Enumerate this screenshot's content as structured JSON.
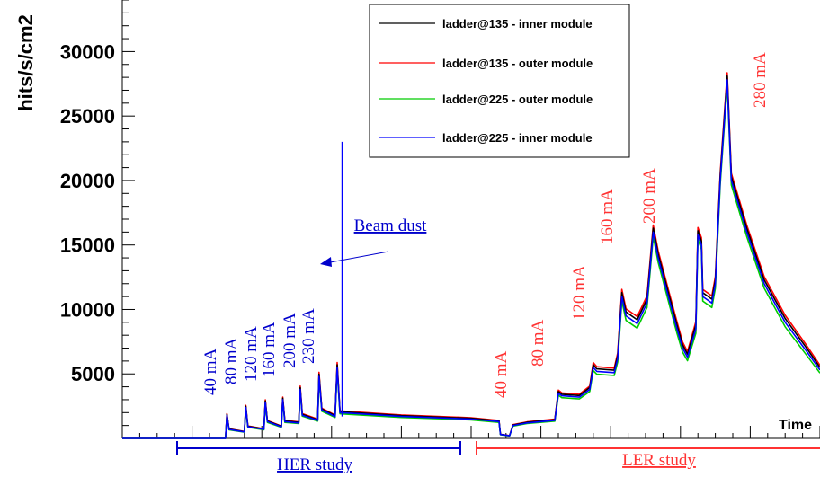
{
  "chart_data": {
    "type": "line",
    "ylabel": "hits/s/cm2",
    "xlabel": "Time",
    "ylim": [
      0,
      34000
    ],
    "y_ticks": [
      5000,
      10000,
      15000,
      20000,
      25000,
      30000
    ],
    "legend_position": "top-center",
    "colors": {
      "black": "#000000",
      "red": "#ff0000",
      "green": "#00cc00",
      "blue": "#0000ff",
      "annot_blue": "#0000cc",
      "annot_red": "#ff3333"
    },
    "series": [
      {
        "name": "ladder@135 - inner  module",
        "color": "#000000",
        "offset": 300
      },
      {
        "name": "ladder@135 - outer  module",
        "color": "#ff0000",
        "offset": 550
      },
      {
        "name": "ladder@225 - outer  module",
        "color": "#00cc00",
        "offset": -350
      },
      {
        "name": "ladder@225 - inner  module",
        "color": "#0000ff",
        "offset": 0
      }
    ],
    "base_profile": {
      "note_units": "x in relative time units 0-100, y in hits/s/cm2",
      "points": [
        [
          0,
          0
        ],
        [
          14.2,
          0
        ],
        [
          14.8,
          0
        ],
        [
          15.0,
          1800
        ],
        [
          15.3,
          700
        ],
        [
          17.5,
          500
        ],
        [
          17.7,
          2400
        ],
        [
          18.0,
          900
        ],
        [
          20.3,
          700
        ],
        [
          20.5,
          2800
        ],
        [
          20.8,
          1300
        ],
        [
          22.8,
          900
        ],
        [
          23.0,
          3000
        ],
        [
          23.3,
          1300
        ],
        [
          25.3,
          1200
        ],
        [
          25.5,
          3800
        ],
        [
          25.8,
          1800
        ],
        [
          28.0,
          1400
        ],
        [
          28.2,
          4800
        ],
        [
          28.6,
          2200
        ],
        [
          30.5,
          1700
        ],
        [
          30.8,
          5500
        ],
        [
          31.2,
          2000
        ],
        [
          40,
          1700
        ],
        [
          50,
          1500
        ],
        [
          54.0,
          1300
        ],
        [
          54.2,
          300
        ],
        [
          55.5,
          200
        ],
        [
          56.0,
          1000
        ],
        [
          58,
          1200
        ],
        [
          62,
          1400
        ],
        [
          62.5,
          3500
        ],
        [
          63,
          3300
        ],
        [
          65.5,
          3200
        ],
        [
          67.0,
          3800
        ],
        [
          67.5,
          5500
        ],
        [
          68,
          5200
        ],
        [
          70.5,
          5100
        ],
        [
          71.0,
          6200
        ],
        [
          71.6,
          11000
        ],
        [
          72.2,
          9500
        ],
        [
          73.8,
          8900
        ],
        [
          75.2,
          10500
        ],
        [
          76.1,
          16000
        ],
        [
          76.8,
          14000
        ],
        [
          78.5,
          10500
        ],
        [
          79.5,
          8500
        ],
        [
          80.3,
          7000
        ],
        [
          81.0,
          6300
        ],
        [
          82.2,
          8500
        ],
        [
          82.5,
          15800
        ],
        [
          83.0,
          15000
        ],
        [
          83.2,
          11000
        ],
        [
          84.5,
          10500
        ],
        [
          85.0,
          12000
        ],
        [
          85.7,
          20000
        ],
        [
          86.7,
          27800
        ],
        [
          87.3,
          20000
        ],
        [
          89.5,
          16000
        ],
        [
          92,
          12000
        ],
        [
          95,
          9000
        ],
        [
          98,
          6800
        ],
        [
          100,
          5300
        ]
      ]
    },
    "spike": {
      "x": 31.5,
      "y": 23000,
      "label": "Beam dust"
    },
    "her_labels": [
      "40 mA",
      "80 mA",
      "120 mA",
      "160 mA",
      "200 mA",
      "230 mA"
    ],
    "ler_labels": [
      "40 mA",
      "80 mA",
      "120 mA",
      "160 mA",
      "200 mA",
      "280 mA"
    ],
    "studies": [
      {
        "label": "HER study",
        "color": "#0000cc"
      },
      {
        "label": "LER study",
        "color": "#ff3333"
      }
    ]
  }
}
